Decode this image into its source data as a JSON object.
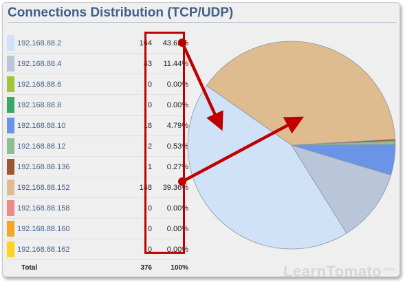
{
  "title": "Connections Distribution (TCP/UDP)",
  "rows": [
    {
      "ip": "192.168.88.2",
      "count": "164",
      "percent": "43.62%",
      "color": "#cfe2f8"
    },
    {
      "ip": "192.168.88.4",
      "count": "43",
      "percent": "11.44%",
      "color": "#b9c6da"
    },
    {
      "ip": "192.168.88.6",
      "count": "0",
      "percent": "0.00%",
      "color": "#a0c63a"
    },
    {
      "ip": "192.168.88.8",
      "count": "0",
      "percent": "0.00%",
      "color": "#3aa66a"
    },
    {
      "ip": "192.168.88.10",
      "count": "18",
      "percent": "4.79%",
      "color": "#6a95e6"
    },
    {
      "ip": "192.168.88.12",
      "count": "2",
      "percent": "0.53%",
      "color": "#8ebd92"
    },
    {
      "ip": "192.168.88.136",
      "count": "1",
      "percent": "0.27%",
      "color": "#9c5632"
    },
    {
      "ip": "192.168.88.152",
      "count": "148",
      "percent": "39.36%",
      "color": "#dfbb90"
    },
    {
      "ip": "192.168.88.158",
      "count": "0",
      "percent": "0.00%",
      "color": "#ee8a8a"
    },
    {
      "ip": "192.168.88.160",
      "count": "0",
      "percent": "0.00%",
      "color": "#f5a623"
    },
    {
      "ip": "192.168.88.162",
      "count": "0",
      "percent": "0.00%",
      "color": "#ffd21f"
    }
  ],
  "total": {
    "label": "Total",
    "count": "376",
    "percent": "100%"
  },
  "watermark": "LearnTomato",
  "watermark_suffix": ".com",
  "chart_data": {
    "type": "pie",
    "categories": [
      "192.168.88.2",
      "192.168.88.4",
      "192.168.88.6",
      "192.168.88.8",
      "192.168.88.10",
      "192.168.88.12",
      "192.168.88.136",
      "192.168.88.152",
      "192.168.88.158",
      "192.168.88.160",
      "192.168.88.162"
    ],
    "values": [
      164,
      43,
      0,
      0,
      18,
      2,
      1,
      148,
      0,
      0,
      0
    ],
    "colors": [
      "#cfe2f8",
      "#b9c6da",
      "#a0c63a",
      "#3aa66a",
      "#6a95e6",
      "#8ebd92",
      "#9c5632",
      "#dfbb90",
      "#ee8a8a",
      "#f5a623",
      "#ffd21f"
    ]
  },
  "annotation_color": "#c00000"
}
